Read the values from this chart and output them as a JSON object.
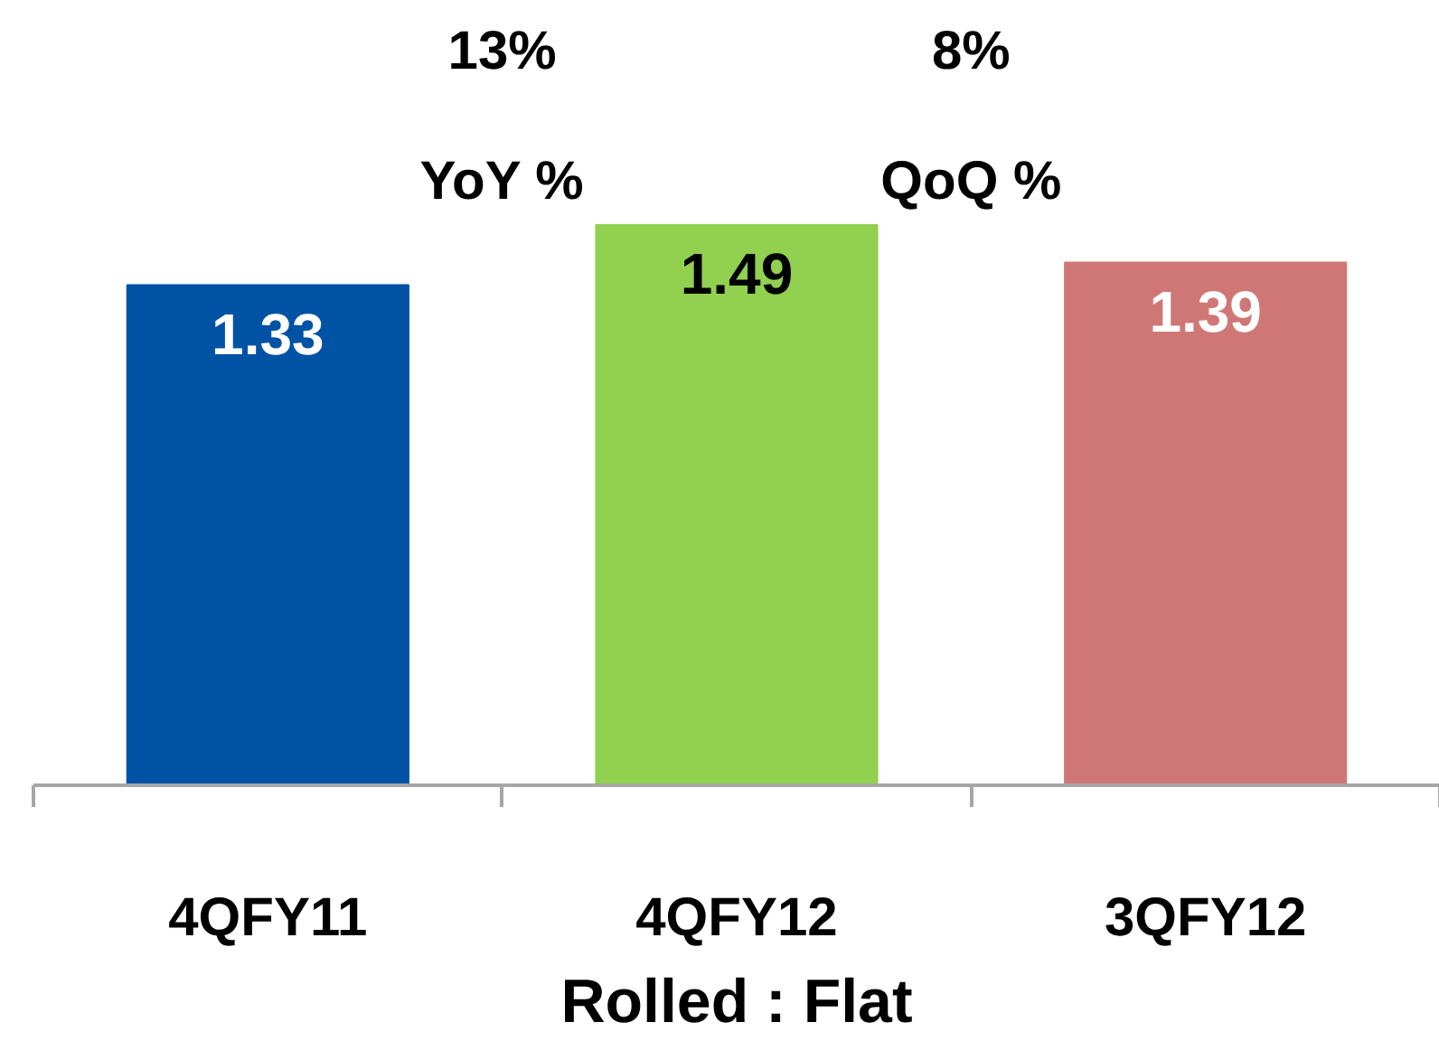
{
  "chart_data": {
    "type": "bar",
    "xlabel": "Rolled : Flat",
    "categories": [
      "4QFY11",
      "4QFY12",
      "3QFY12"
    ],
    "values": [
      1.33,
      1.49,
      1.39
    ],
    "colors": [
      "#0052a5",
      "#92d050",
      "#cf7777"
    ],
    "tick_labels": "x",
    "grid": false,
    "data_labels": true,
    "annotations": [
      "13%",
      "YoY %",
      "8%",
      "QoQ %"
    ]
  }
}
